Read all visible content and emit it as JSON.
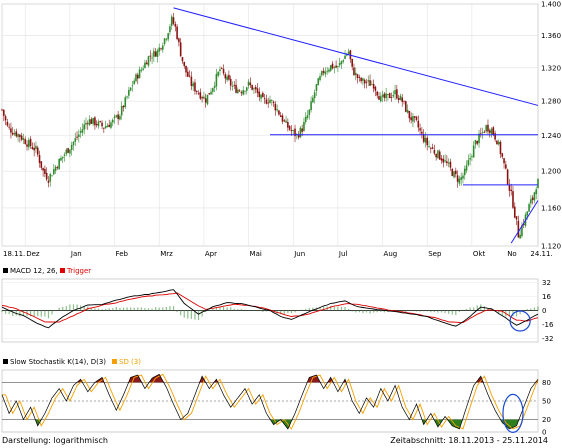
{
  "chart_data": [
    {
      "type": "candlestick",
      "panel": "price",
      "x_labels": [
        "18.11.",
        "Dez",
        "Jan",
        "Feb",
        "Mrz",
        "Apr",
        "Mai",
        "Jun",
        "Jul",
        "Aug",
        "Sep",
        "Okt",
        "No",
        "24.11."
      ],
      "y_ticks": [
        "1.400",
        "1.360",
        "1.320",
        "1.280",
        "1.240",
        "1.200",
        "1.160",
        "1.120"
      ],
      "y_scale": "log",
      "ylim": [
        1.12,
        1.4
      ],
      "grid": true,
      "close_path": [
        [
          0,
          1.27
        ],
        [
          3,
          1.25
        ],
        [
          6,
          1.245
        ],
        [
          10,
          1.24
        ],
        [
          14,
          1.232
        ],
        [
          19,
          1.224
        ],
        [
          23,
          1.2
        ],
        [
          26,
          1.192
        ],
        [
          30,
          1.205
        ],
        [
          36,
          1.222
        ],
        [
          42,
          1.238
        ],
        [
          48,
          1.258
        ],
        [
          52,
          1.255
        ],
        [
          57,
          1.25
        ],
        [
          62,
          1.256
        ],
        [
          66,
          1.265
        ],
        [
          70,
          1.285
        ],
        [
          74,
          1.305
        ],
        [
          78,
          1.318
        ],
        [
          82,
          1.333
        ],
        [
          87,
          1.34
        ],
        [
          92,
          1.36
        ],
        [
          95,
          1.38
        ],
        [
          97,
          1.37
        ],
        [
          100,
          1.338
        ],
        [
          102,
          1.32
        ],
        [
          106,
          1.3
        ],
        [
          110,
          1.29
        ],
        [
          114,
          1.282
        ],
        [
          118,
          1.298
        ],
        [
          122,
          1.318
        ],
        [
          126,
          1.305
        ],
        [
          130,
          1.295
        ],
        [
          134,
          1.293
        ],
        [
          138,
          1.3
        ],
        [
          142,
          1.292
        ],
        [
          146,
          1.28
        ],
        [
          150,
          1.282
        ],
        [
          154,
          1.27
        ],
        [
          158,
          1.255
        ],
        [
          162,
          1.245
        ],
        [
          165,
          1.24
        ],
        [
          168,
          1.248
        ],
        [
          172,
          1.268
        ],
        [
          176,
          1.298
        ],
        [
          180,
          1.316
        ],
        [
          184,
          1.322
        ],
        [
          188,
          1.32
        ],
        [
          191,
          1.332
        ],
        [
          194,
          1.34
        ],
        [
          196,
          1.318
        ],
        [
          200,
          1.305
        ],
        [
          204,
          1.302
        ],
        [
          208,
          1.3
        ],
        [
          212,
          1.282
        ],
        [
          216,
          1.285
        ],
        [
          220,
          1.29
        ],
        [
          224,
          1.28
        ],
        [
          228,
          1.262
        ],
        [
          232,
          1.254
        ],
        [
          235,
          1.24
        ],
        [
          238,
          1.23
        ],
        [
          242,
          1.222
        ],
        [
          246,
          1.215
        ],
        [
          250,
          1.205
        ],
        [
          253,
          1.196
        ],
        [
          256,
          1.19
        ],
        [
          259,
          1.198
        ],
        [
          262,
          1.215
        ],
        [
          265,
          1.232
        ],
        [
          268,
          1.24
        ],
        [
          271,
          1.25
        ],
        [
          274,
          1.247
        ],
        [
          277,
          1.235
        ],
        [
          280,
          1.215
        ],
        [
          283,
          1.19
        ],
        [
          286,
          1.165
        ],
        [
          289,
          1.132
        ],
        [
          292,
          1.145
        ],
        [
          295,
          1.162
        ],
        [
          297,
          1.17
        ],
        [
          299,
          1.185
        ],
        [
          300,
          1.188
        ]
      ],
      "trend_lines": [
        {
          "from": [
            96,
            1.395
          ],
          "to": [
            300,
            1.275
          ]
        },
        {
          "from": [
            150,
            1.241
          ],
          "to": [
            300,
            1.241
          ]
        },
        {
          "from": [
            258,
            1.185
          ],
          "to": [
            300,
            1.185
          ]
        },
        {
          "from": [
            285,
            1.123
          ],
          "to": [
            300,
            1.168
          ]
        }
      ]
    },
    {
      "type": "line",
      "panel": "macd",
      "legend": [
        {
          "name": "MACD 12, 26, 9",
          "color": "#000000"
        },
        {
          "name": "Trigger",
          "color": "#e00000"
        }
      ],
      "y_ticks": [
        "32",
        "16",
        "0",
        "-16",
        "-32"
      ],
      "ylim": [
        -36,
        36
      ],
      "series": [
        {
          "name": "MACD 12, 26, 9",
          "points": [
            [
              0,
              4
            ],
            [
              6,
              -2
            ],
            [
              12,
              -6
            ],
            [
              20,
              -15
            ],
            [
              26,
              -20
            ],
            [
              32,
              -10
            ],
            [
              40,
              0
            ],
            [
              48,
              6
            ],
            [
              56,
              7
            ],
            [
              64,
              12
            ],
            [
              72,
              16
            ],
            [
              80,
              18
            ],
            [
              90,
              21
            ],
            [
              96,
              24
            ],
            [
              102,
              8
            ],
            [
              110,
              -4
            ],
            [
              118,
              4
            ],
            [
              126,
              9
            ],
            [
              134,
              8
            ],
            [
              142,
              4
            ],
            [
              150,
              0
            ],
            [
              156,
              -7
            ],
            [
              162,
              -10
            ],
            [
              168,
              -5
            ],
            [
              176,
              2
            ],
            [
              184,
              8
            ],
            [
              192,
              11
            ],
            [
              198,
              5
            ],
            [
              206,
              2
            ],
            [
              214,
              0
            ],
            [
              222,
              -2
            ],
            [
              230,
              -4
            ],
            [
              238,
              -7
            ],
            [
              246,
              -13
            ],
            [
              254,
              -18
            ],
            [
              260,
              -10
            ],
            [
              268,
              4
            ],
            [
              274,
              2
            ],
            [
              280,
              -6
            ],
            [
              288,
              -17
            ],
            [
              294,
              -11
            ],
            [
              300,
              -4
            ]
          ]
        },
        {
          "name": "Trigger",
          "points": [
            [
              0,
              6
            ],
            [
              8,
              2
            ],
            [
              16,
              -5
            ],
            [
              24,
              -13
            ],
            [
              32,
              -13
            ],
            [
              40,
              -6
            ],
            [
              48,
              2
            ],
            [
              56,
              6
            ],
            [
              64,
              9
            ],
            [
              72,
              13
            ],
            [
              80,
              16
            ],
            [
              90,
              18
            ],
            [
              98,
              20
            ],
            [
              106,
              10
            ],
            [
              114,
              1
            ],
            [
              122,
              4
            ],
            [
              130,
              7
            ],
            [
              138,
              6
            ],
            [
              146,
              3
            ],
            [
              154,
              -2
            ],
            [
              162,
              -7
            ],
            [
              170,
              -5
            ],
            [
              178,
              0
            ],
            [
              186,
              5
            ],
            [
              194,
              8
            ],
            [
              202,
              6
            ],
            [
              210,
              3
            ],
            [
              218,
              0
            ],
            [
              226,
              -2
            ],
            [
              234,
              -5
            ],
            [
              242,
              -8
            ],
            [
              250,
              -13
            ],
            [
              258,
              -14
            ],
            [
              266,
              -4
            ],
            [
              272,
              1
            ],
            [
              280,
              -1
            ],
            [
              288,
              -11
            ],
            [
              294,
              -12
            ],
            [
              300,
              -8
            ]
          ]
        }
      ]
    },
    {
      "type": "line",
      "panel": "stochastic",
      "legend": [
        {
          "name": "Slow Stochastik K(14), D(3)",
          "color": "#000000"
        },
        {
          "name": "SD (3)",
          "color": "#f5a000"
        }
      ],
      "y_ticks": [
        "80",
        "50",
        "20",
        "0"
      ],
      "ylim": [
        0,
        100
      ],
      "series": [
        {
          "name": "Slow Stochastik K(14), D(3)",
          "points": [
            [
              0,
              60
            ],
            [
              4,
              30
            ],
            [
              8,
              50
            ],
            [
              12,
              20
            ],
            [
              16,
              40
            ],
            [
              20,
              10
            ],
            [
              24,
              30
            ],
            [
              28,
              55
            ],
            [
              32,
              70
            ],
            [
              36,
              50
            ],
            [
              40,
              75
            ],
            [
              44,
              85
            ],
            [
              48,
              65
            ],
            [
              52,
              80
            ],
            [
              56,
              88
            ],
            [
              60,
              60
            ],
            [
              64,
              35
            ],
            [
              68,
              60
            ],
            [
              72,
              88
            ],
            [
              76,
              92
            ],
            [
              80,
              70
            ],
            [
              84,
              87
            ],
            [
              88,
              93
            ],
            [
              92,
              72
            ],
            [
              96,
              45
            ],
            [
              100,
              20
            ],
            [
              104,
              30
            ],
            [
              108,
              60
            ],
            [
              112,
              90
            ],
            [
              116,
              70
            ],
            [
              120,
              85
            ],
            [
              124,
              60
            ],
            [
              128,
              40
            ],
            [
              132,
              55
            ],
            [
              136,
              70
            ],
            [
              140,
              45
            ],
            [
              144,
              60
            ],
            [
              148,
              30
            ],
            [
              152,
              12
            ],
            [
              156,
              20
            ],
            [
              160,
              5
            ],
            [
              164,
              30
            ],
            [
              168,
              60
            ],
            [
              172,
              88
            ],
            [
              176,
              92
            ],
            [
              180,
              70
            ],
            [
              184,
              88
            ],
            [
              188,
              65
            ],
            [
              192,
              85
            ],
            [
              196,
              50
            ],
            [
              200,
              30
            ],
            [
              204,
              55
            ],
            [
              208,
              40
            ],
            [
              212,
              70
            ],
            [
              216,
              50
            ],
            [
              220,
              75
            ],
            [
              224,
              40
            ],
            [
              228,
              20
            ],
            [
              232,
              45
            ],
            [
              236,
              12
            ],
            [
              240,
              30
            ],
            [
              244,
              8
            ],
            [
              248,
              25
            ],
            [
              252,
              10
            ],
            [
              256,
              5
            ],
            [
              260,
              40
            ],
            [
              264,
              75
            ],
            [
              268,
              90
            ],
            [
              272,
              60
            ],
            [
              276,
              35
            ],
            [
              280,
              15
            ],
            [
              284,
              5
            ],
            [
              288,
              10
            ],
            [
              292,
              40
            ],
            [
              296,
              70
            ],
            [
              300,
              85
            ]
          ]
        }
      ],
      "zones": {
        "upper": 80,
        "lower": 20,
        "upper_color": "#8b1a1a",
        "lower_color": "#2e7d1e"
      }
    }
  ],
  "footer": {
    "left": "Darstellung: logarithmisch",
    "right": "Zeitabschnitt: 18.11.2013 - 25.11.2014"
  },
  "colors": {
    "up_candle": "#2e8b2e",
    "down_candle": "#8b1010",
    "trend_line": "#2020ff",
    "circle": "#1a4ad8"
  }
}
